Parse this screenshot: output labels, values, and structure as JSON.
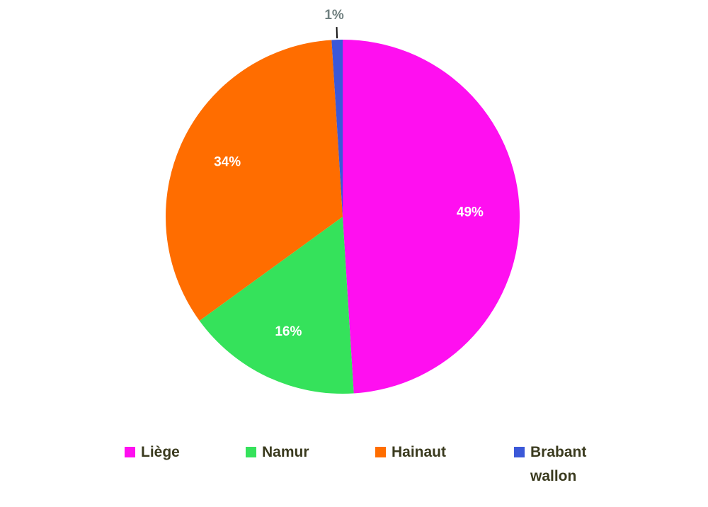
{
  "chart_data": {
    "type": "pie",
    "categories": [
      "Liège",
      "Namur",
      "Hainaut",
      "Brabant wallon"
    ],
    "values": [
      49,
      16,
      34,
      1
    ],
    "value_labels": [
      "49%",
      "16%",
      "34%",
      "1%"
    ],
    "colors": [
      "#ff0ff0",
      "#35e25b",
      "#ff6d00",
      "#3b58d8"
    ]
  }
}
